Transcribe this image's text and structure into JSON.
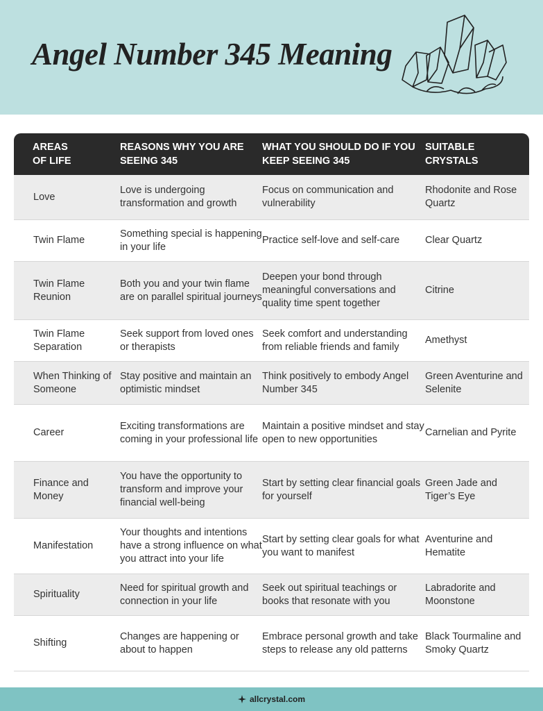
{
  "header": {
    "title": "Angel Number 345 Meaning"
  },
  "table": {
    "columns": [
      "AREAS OF LIFE",
      "REASONS WHY YOU ARE SEEING 345",
      "WHAT YOU SHOULD DO IF YOU KEEP SEEING 345",
      "SUITABLE CRYSTALS"
    ],
    "rows": [
      [
        "Love",
        "Love is undergoing transformation and growth",
        "Focus on communication and vulnerability",
        "Rhodonite and Rose Quartz"
      ],
      [
        "Twin Flame",
        "Something special is happening in your life",
        "Practice self-love and self-care",
        "Clear Quartz"
      ],
      [
        "Twin Flame Reunion",
        "Both you and your twin flame are on parallel spiritual journeys",
        "Deepen your bond through meaningful conversations and quality time spent together",
        "Citrine"
      ],
      [
        "Twin Flame Separation",
        "Seek support from loved ones or therapists",
        "Seek comfort and understanding from reliable friends and family",
        "Amethyst"
      ],
      [
        "When Thinking of Someone",
        "Stay positive and maintain an optimistic mindset",
        "Think positively to embody Angel Number 345",
        "Green Aventurine and Selenite"
      ],
      [
        "Career",
        "Exciting transformations are coming in your professional life",
        "Maintain a positive mindset and stay open to new opportunities",
        "Carnelian and Pyrite"
      ],
      [
        "Finance and Money",
        "You have the opportunity to transform and improve your financial well-being",
        "Start by setting clear financial goals for yourself",
        "Green Jade and Tiger’s Eye"
      ],
      [
        "Manifestation",
        "Your thoughts and intentions have a strong influence on what you attract into your life",
        "Start by setting clear goals for what you want to manifest",
        "Aventurine and Hematite"
      ],
      [
        "Spirituality",
        "Need for spiritual growth and connection in your life",
        "Seek out spiritual teachings or books that resonate with you",
        "Labradorite and Moonstone"
      ],
      [
        "Shifting",
        "Changes are happening or about to happen",
        "Embrace personal growth and take steps to release any old patterns",
        "Black Tourmaline and Smoky Quartz"
      ]
    ]
  },
  "footer": {
    "site": "allcrystal.com"
  }
}
